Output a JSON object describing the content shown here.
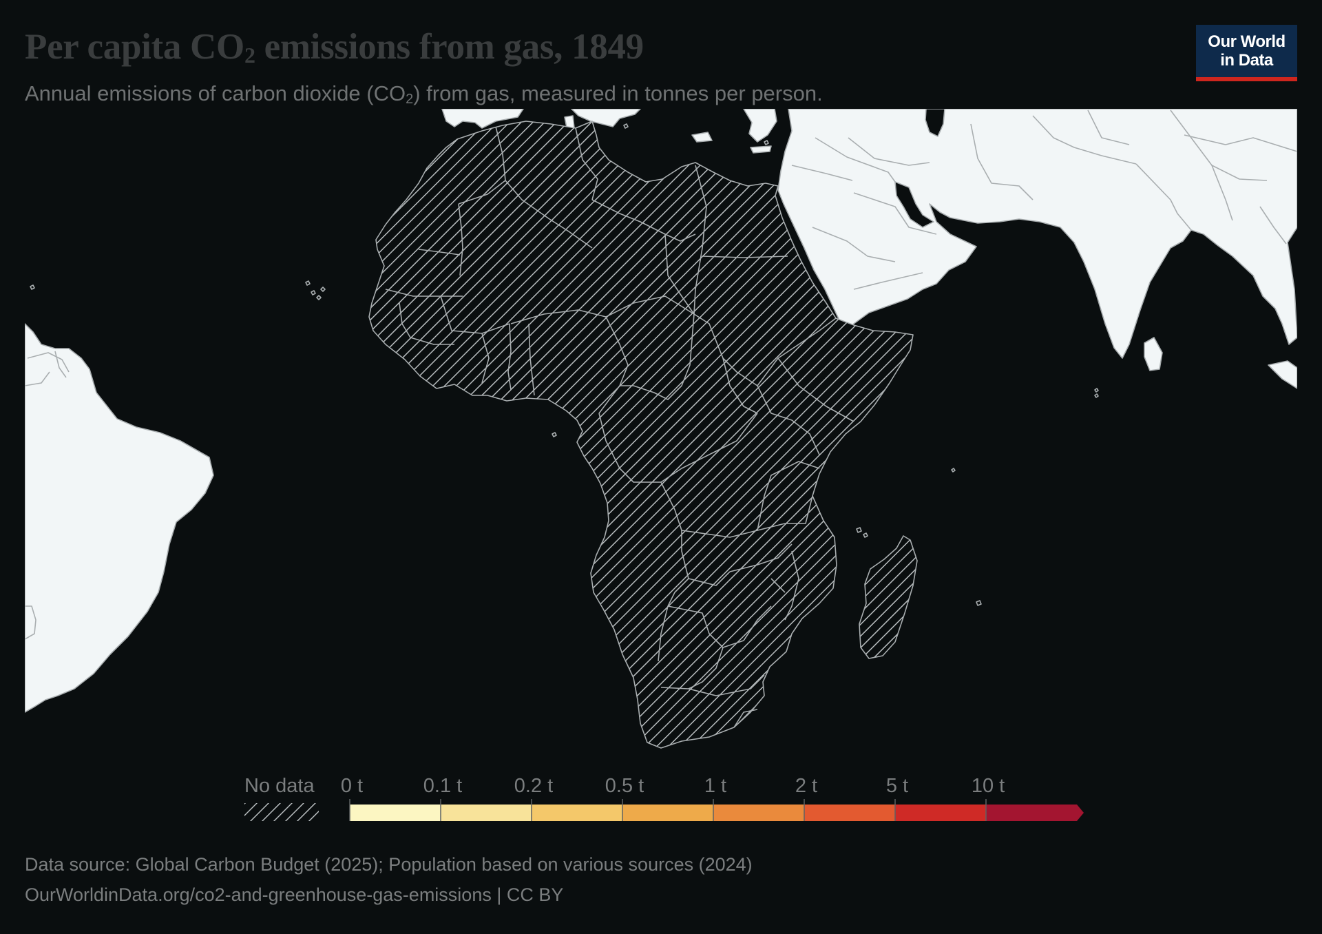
{
  "header": {
    "title_main": "Per capita CO",
    "title_sub": "2",
    "title_rest": " emissions from gas, 1849",
    "subtitle_main": "Annual emissions of carbon dioxide (CO",
    "subtitle_sub": "2",
    "subtitle_rest": ") from gas, measured in tonnes per person."
  },
  "logo": {
    "text": "Our World\nin Data",
    "bg_color": "#0e2a4b",
    "accent_color": "#ce261e"
  },
  "map": {
    "region_shown": "Africa",
    "status": "No data for all countries in Africa",
    "fill_nodata_pattern": "diagonal-hatch",
    "land_color": "#f2f6f7",
    "border_color": "#a9aeb0",
    "ocean_color": "#0a0e0f"
  },
  "legend": {
    "no_data_label": "No data",
    "bins": [
      {
        "label": "0 t",
        "color": "#fcf6c2"
      },
      {
        "label": "0.1 t",
        "color": "#f8e39a"
      },
      {
        "label": "0.2 t",
        "color": "#f4c86a"
      },
      {
        "label": "0.5 t",
        "color": "#eeaa4a"
      },
      {
        "label": "1 t",
        "color": "#ea8a3c"
      },
      {
        "label": "2 t",
        "color": "#e35a30"
      },
      {
        "label": "5 t",
        "color": "#cf2a26"
      },
      {
        "label": "10 t",
        "color": "#a31530"
      }
    ]
  },
  "footer": {
    "source": "Data source: Global Carbon Budget (2025); Population based on various sources (2024)",
    "url": "OurWorldinData.org/co2-and-greenhouse-gas-emissions | CC BY"
  }
}
